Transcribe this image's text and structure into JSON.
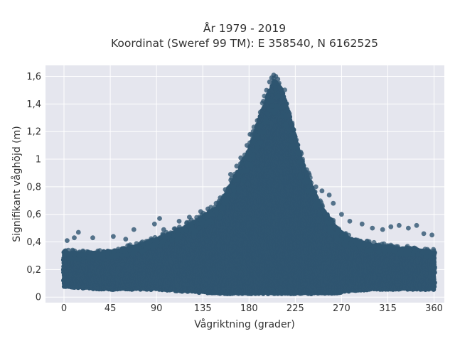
{
  "chart_data": {
    "type": "scatter",
    "title": "År 1979 - 2019",
    "subtitle": "Koordinat (Sweref 99 TM): E 358540, N 6162525",
    "xlabel": "Vågriktning (grader)",
    "ylabel": "Signifikant våghöjd (m)",
    "xlim": [
      -18,
      370
    ],
    "ylim": [
      -0.04,
      1.68
    ],
    "xticks": [
      0,
      45,
      90,
      135,
      180,
      225,
      270,
      315,
      360
    ],
    "xtick_labels": [
      "0",
      "45",
      "90",
      "135",
      "180",
      "225",
      "270",
      "315",
      "360"
    ],
    "yticks": [
      0,
      0.2,
      0.4,
      0.6,
      0.8,
      1,
      1.2,
      1.4,
      1.6
    ],
    "ytick_labels": [
      "0",
      "0,2",
      "0,4",
      "0,6",
      "0,8",
      "1",
      "1,2",
      "1,4",
      "1,6"
    ],
    "grid": true,
    "colors": {
      "marker": "#2f5570",
      "plot_background": "#e5e6ee",
      "grid": "#ffffff"
    },
    "envelope": {
      "direction": [
        0,
        20,
        45,
        70,
        90,
        110,
        130,
        150,
        160,
        170,
        180,
        190,
        198,
        205,
        212,
        220,
        230,
        240,
        250,
        260,
        270,
        280,
        300,
        320,
        340,
        360
      ],
      "lower": [
        0.08,
        0.07,
        0.06,
        0.06,
        0.06,
        0.05,
        0.04,
        0.03,
        0.03,
        0.03,
        0.03,
        0.03,
        0.03,
        0.03,
        0.03,
        0.03,
        0.03,
        0.03,
        0.03,
        0.03,
        0.04,
        0.05,
        0.06,
        0.06,
        0.06,
        0.06
      ],
      "upper": [
        0.33,
        0.32,
        0.33,
        0.37,
        0.42,
        0.48,
        0.56,
        0.66,
        0.78,
        0.92,
        1.07,
        1.3,
        1.45,
        1.58,
        1.5,
        1.3,
        1.02,
        0.82,
        0.66,
        0.55,
        0.46,
        0.42,
        0.38,
        0.36,
        0.35,
        0.33
      ]
    },
    "outliers": [
      {
        "x": 3,
        "y": 0.41
      },
      {
        "x": 10,
        "y": 0.43
      },
      {
        "x": 14,
        "y": 0.47
      },
      {
        "x": 28,
        "y": 0.43
      },
      {
        "x": 48,
        "y": 0.44
      },
      {
        "x": 60,
        "y": 0.42
      },
      {
        "x": 68,
        "y": 0.49
      },
      {
        "x": 88,
        "y": 0.53
      },
      {
        "x": 93,
        "y": 0.57
      },
      {
        "x": 97,
        "y": 0.49
      },
      {
        "x": 112,
        "y": 0.55
      },
      {
        "x": 122,
        "y": 0.58
      },
      {
        "x": 133,
        "y": 0.62
      },
      {
        "x": 140,
        "y": 0.64
      },
      {
        "x": 148,
        "y": 0.68
      },
      {
        "x": 152,
        "y": 0.72
      },
      {
        "x": 157,
        "y": 0.78
      },
      {
        "x": 162,
        "y": 0.89
      },
      {
        "x": 168,
        "y": 0.95
      },
      {
        "x": 172,
        "y": 1.01
      },
      {
        "x": 178,
        "y": 1.1
      },
      {
        "x": 181,
        "y": 1.18
      },
      {
        "x": 184,
        "y": 1.2
      },
      {
        "x": 188,
        "y": 1.28
      },
      {
        "x": 191,
        "y": 1.34
      },
      {
        "x": 194,
        "y": 1.42
      },
      {
        "x": 197,
        "y": 1.5
      },
      {
        "x": 200,
        "y": 1.56
      },
      {
        "x": 202,
        "y": 1.59
      },
      {
        "x": 204,
        "y": 1.61
      },
      {
        "x": 206,
        "y": 1.6
      },
      {
        "x": 208,
        "y": 1.58
      },
      {
        "x": 210,
        "y": 1.52
      },
      {
        "x": 213,
        "y": 1.45
      },
      {
        "x": 216,
        "y": 1.39
      },
      {
        "x": 219,
        "y": 1.32
      },
      {
        "x": 222,
        "y": 1.25
      },
      {
        "x": 226,
        "y": 1.14
      },
      {
        "x": 232,
        "y": 1.0
      },
      {
        "x": 238,
        "y": 0.9
      },
      {
        "x": 245,
        "y": 0.8
      },
      {
        "x": 251,
        "y": 0.77
      },
      {
        "x": 258,
        "y": 0.74
      },
      {
        "x": 262,
        "y": 0.68
      },
      {
        "x": 270,
        "y": 0.6
      },
      {
        "x": 278,
        "y": 0.55
      },
      {
        "x": 290,
        "y": 0.53
      },
      {
        "x": 300,
        "y": 0.5
      },
      {
        "x": 310,
        "y": 0.49
      },
      {
        "x": 318,
        "y": 0.51
      },
      {
        "x": 326,
        "y": 0.52
      },
      {
        "x": 335,
        "y": 0.5
      },
      {
        "x": 343,
        "y": 0.52
      },
      {
        "x": 350,
        "y": 0.46
      },
      {
        "x": 358,
        "y": 0.45
      }
    ]
  }
}
